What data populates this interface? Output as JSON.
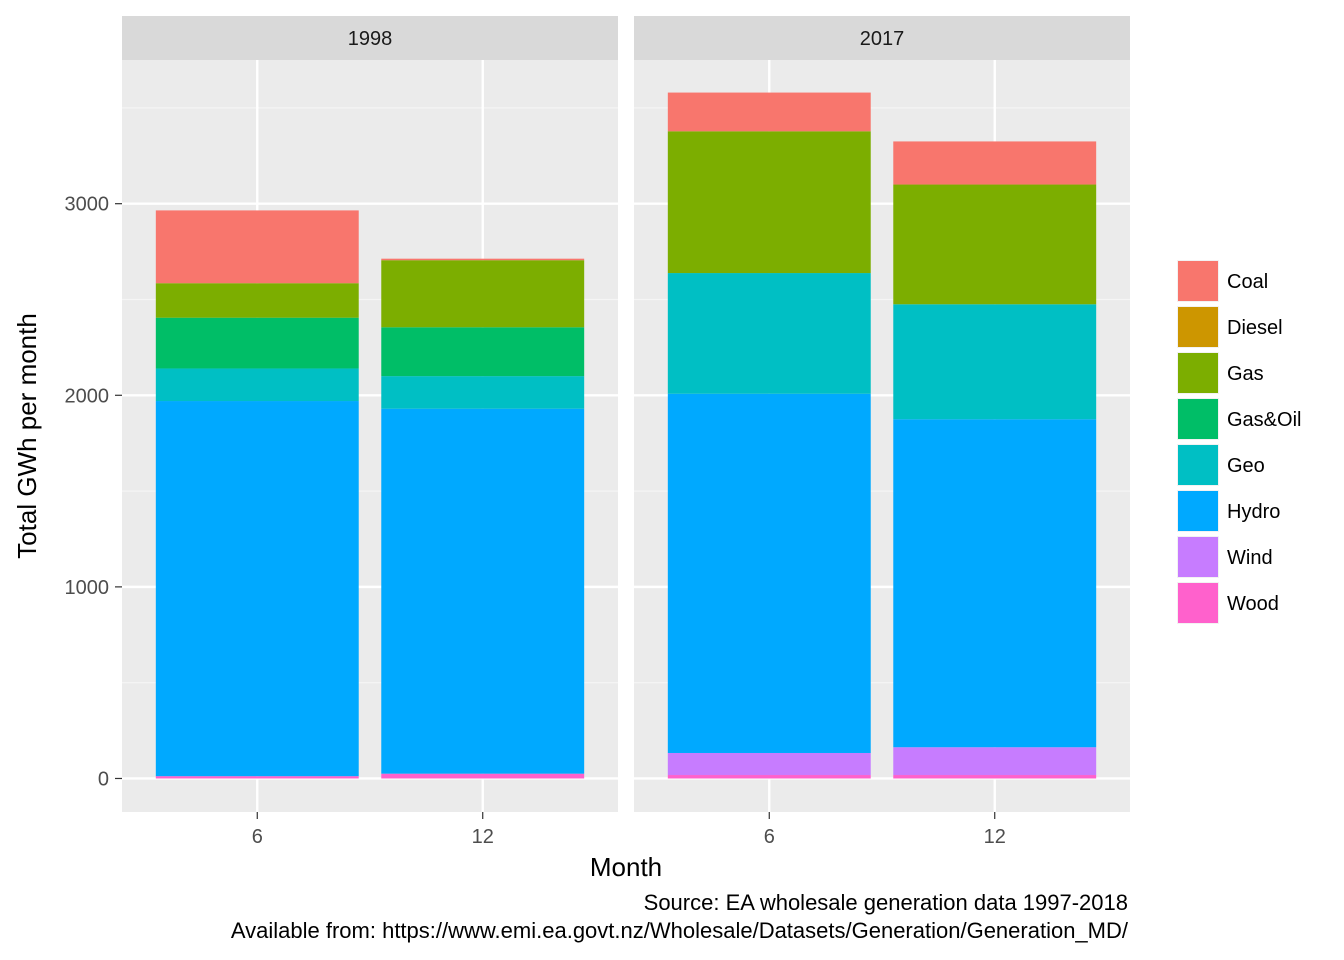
{
  "chart_data": {
    "type": "bar",
    "stacked": true,
    "facets": [
      {
        "label": "1998",
        "categories": [
          "6",
          "12"
        ],
        "series": [
          {
            "name": "Wood",
            "values": [
              12,
              25
            ]
          },
          {
            "name": "Wind",
            "values": [
              0,
              0
            ]
          },
          {
            "name": "Hydro",
            "values": [
              1958,
              1905
            ]
          },
          {
            "name": "Geo",
            "values": [
              170,
              170
            ]
          },
          {
            "name": "Gas&Oil",
            "values": [
              265,
              255
            ]
          },
          {
            "name": "Gas",
            "values": [
              180,
              350
            ]
          },
          {
            "name": "Diesel",
            "values": [
              0,
              0
            ]
          },
          {
            "name": "Coal",
            "values": [
              380,
              8
            ]
          }
        ]
      },
      {
        "label": "2017",
        "categories": [
          "6",
          "12"
        ],
        "series": [
          {
            "name": "Wood",
            "values": [
              18,
              18
            ]
          },
          {
            "name": "Wind",
            "values": [
              115,
              145
            ]
          },
          {
            "name": "Hydro",
            "values": [
              1875,
              1712
            ]
          },
          {
            "name": "Geo",
            "values": [
              630,
              600
            ]
          },
          {
            "name": "Gas&Oil",
            "values": [
              0,
              0
            ]
          },
          {
            "name": "Gas",
            "values": [
              740,
              625
            ]
          },
          {
            "name": "Diesel",
            "values": [
              0,
              0
            ]
          },
          {
            "name": "Coal",
            "values": [
              202,
              225
            ]
          }
        ]
      }
    ],
    "legend": {
      "position": "right",
      "entries": [
        "Coal",
        "Diesel",
        "Gas",
        "Gas&Oil",
        "Geo",
        "Hydro",
        "Wind",
        "Wood"
      ]
    },
    "colors": {
      "Coal": "#F8766D",
      "Diesel": "#CD9600",
      "Gas": "#7CAE00",
      "Gas&Oil": "#00BE67",
      "Geo": "#00BFC4",
      "Hydro": "#00A9FF",
      "Wind": "#C77CFF",
      "Wood": "#FF61CC"
    },
    "xlabel": "Month",
    "ylabel": "Total GWh per month",
    "ylim": [
      -175,
      3750
    ],
    "yticks": [
      0,
      1000,
      2000,
      3000
    ],
    "ytick_labels": [
      "0",
      "1000",
      "2000",
      "3000"
    ],
    "grid": true,
    "caption": [
      "Source: EA wholesale generation data 1997-2018",
      "Available from: https://www.emi.ea.govt.nz/Wholesale/Datasets/Generation/Generation_MD/"
    ]
  }
}
